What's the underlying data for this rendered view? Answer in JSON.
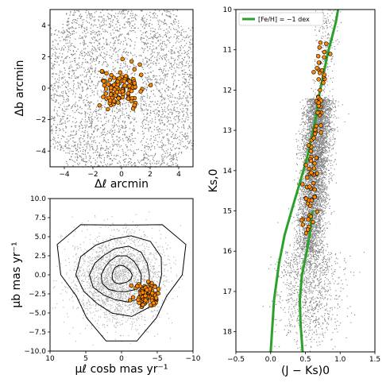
{
  "chart_data": [
    {
      "type": "scatter",
      "panel": "top-left",
      "xlabel": "Δℓ  arcmin",
      "ylabel": "Δb  arcmin",
      "xlim": [
        -5,
        5
      ],
      "ylim": [
        -5,
        5
      ],
      "xticks": [
        "−4",
        "−2",
        "0",
        "2",
        "4"
      ],
      "yticks": [
        "4",
        "2",
        "0",
        "−2",
        "−4"
      ],
      "grid": false,
      "series": [
        {
          "role": "field stars",
          "color": "#808080",
          "marker": "small dot",
          "count_shown": 3500
        },
        {
          "role": "members",
          "color": "#ff8c00",
          "edge": "#000000",
          "marker": "filled circle",
          "center": [
            0.0,
            0.0
          ],
          "spread_arcmin": 0.9,
          "count_shown": 110
        }
      ]
    },
    {
      "type": "scatter",
      "panel": "bottom-left",
      "xlabel": "μℓ cosb  mas yr⁻¹",
      "ylabel": "μb  mas yr⁻¹",
      "xlim": [
        10,
        -10
      ],
      "ylim": [
        -10,
        10
      ],
      "xticks": [
        "10",
        "5",
        "0",
        "−5",
        "−10"
      ],
      "yticks": [
        "10.0",
        "7.5",
        "5.0",
        "2.5",
        "0.0",
        "−2.5",
        "−5.0",
        "−7.5",
        "−10.0"
      ],
      "grid": false,
      "contours": {
        "color": "#000000",
        "center": [
          0.0,
          0.0
        ],
        "levels": 5
      },
      "series": [
        {
          "role": "field stars",
          "color": "#b0b0b0",
          "marker": "small dot",
          "center": [
            0.5,
            -0.5
          ],
          "count_shown": 2500
        },
        {
          "role": "members",
          "color": "#ff8c00",
          "edge": "#000000",
          "marker": "filled circle",
          "center": [
            -3.5,
            -2.5
          ],
          "count_shown": 90
        }
      ]
    },
    {
      "type": "scatter",
      "panel": "right",
      "xlabel": "(J − Ks)0",
      "ylabel": "Ks,0",
      "xlim": [
        -0.5,
        1.5
      ],
      "ylim": [
        18.5,
        10
      ],
      "xticks": [
        "−0.5",
        "0.0",
        "0.5",
        "1.0",
        "1.5"
      ],
      "yticks": [
        "10",
        "11",
        "12",
        "13",
        "14",
        "15",
        "16",
        "17",
        "18"
      ],
      "grid": false,
      "legend": {
        "position": "top-left",
        "label": "[Fe/H] = −1 dex",
        "color": "#2ca02c"
      },
      "isochrone": {
        "color": "#2ca02c",
        "x": [
          0.0,
          0.05,
          0.12,
          0.2,
          0.3,
          0.42,
          0.52,
          0.6,
          0.66,
          0.7,
          0.76,
          0.82,
          0.88,
          0.94,
          0.97
        ],
        "y": [
          18.5,
          17.2,
          16.3,
          15.6,
          15.0,
          14.3,
          13.7,
          13.1,
          12.6,
          12.1,
          11.6,
          11.1,
          10.7,
          10.3,
          10.0
        ]
      },
      "isochrone_lower": {
        "x": [
          0.46,
          0.43,
          0.42,
          0.45,
          0.52,
          0.57,
          0.6
        ],
        "y": [
          18.5,
          17.8,
          17.2,
          16.6,
          16.0,
          15.5,
          15.0
        ]
      },
      "series": [
        {
          "role": "field stars",
          "color": "#808080",
          "marker": "small dot",
          "count_shown": 6000
        },
        {
          "role": "members",
          "color": "#ff8c00",
          "edge": "#000000",
          "marker": "filled circle",
          "count_shown": 85
        }
      ]
    }
  ]
}
